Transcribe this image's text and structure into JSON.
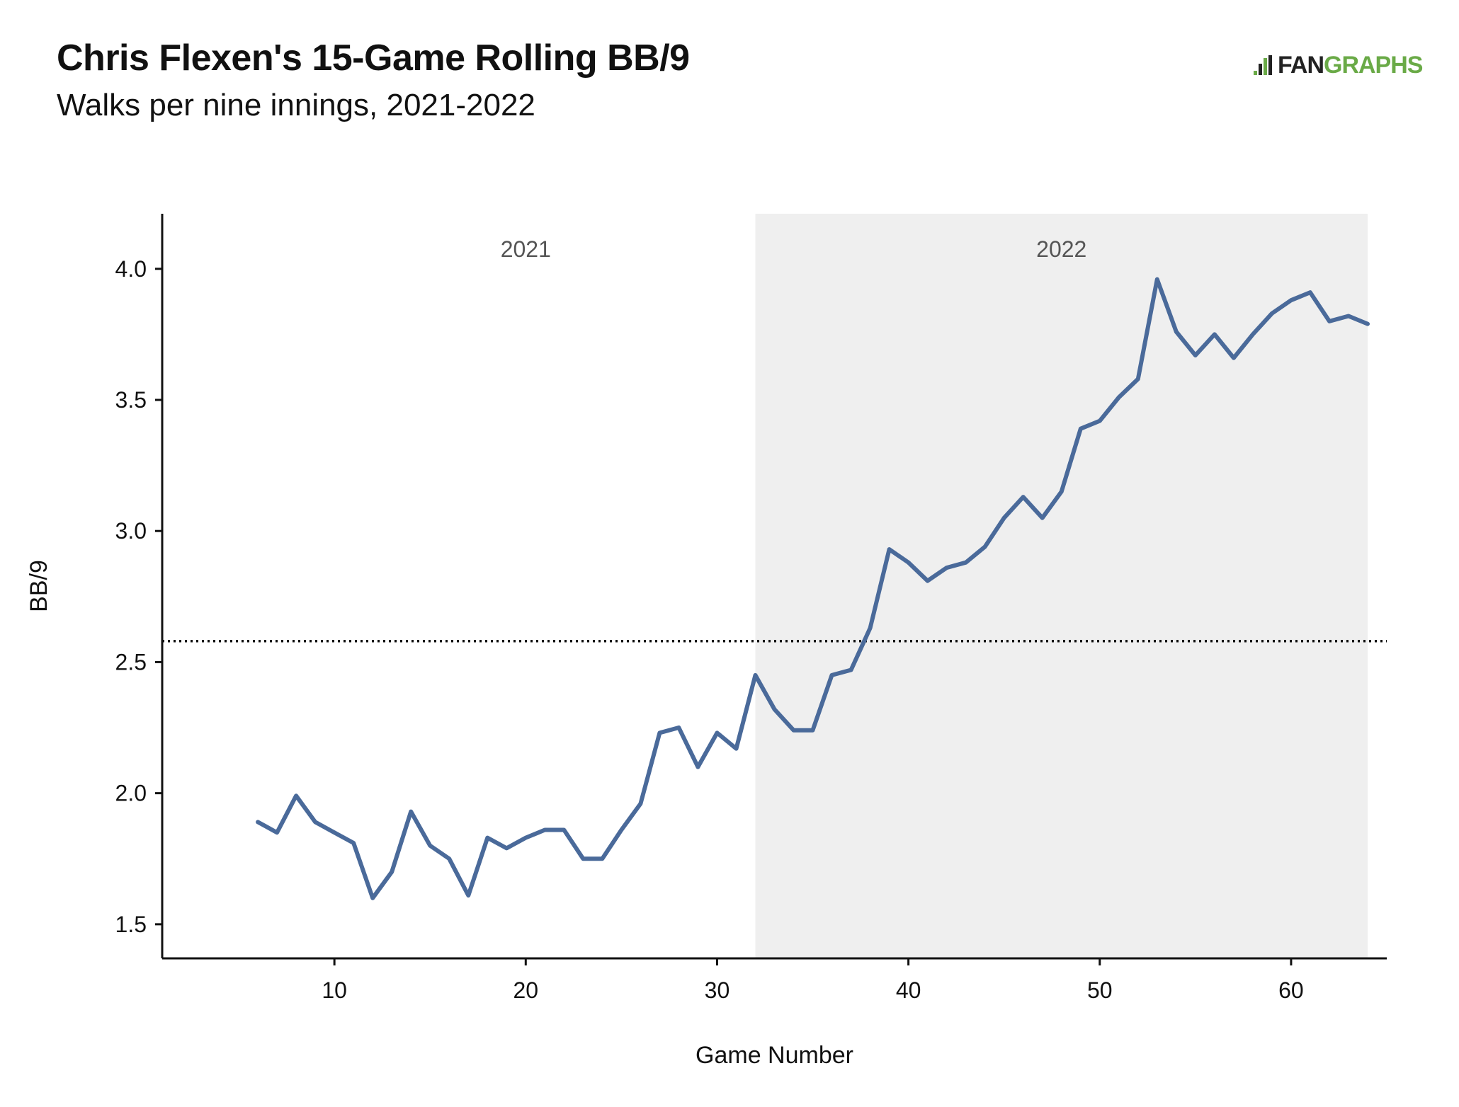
{
  "chart_data": {
    "type": "line",
    "title": "Chris Flexen's 15-Game Rolling BB/9",
    "subtitle": "Walks per nine innings, 2021-2022",
    "xlabel": "Game Number",
    "ylabel": "BB/9",
    "xlim": [
      1,
      65
    ],
    "ylim": [
      1.37,
      4.21
    ],
    "x_ticks": [
      10,
      20,
      30,
      40,
      50,
      60
    ],
    "y_ticks": [
      1.5,
      2.0,
      2.5,
      3.0,
      3.5,
      4.0
    ],
    "y_tick_labels": [
      "1.5",
      "2.0",
      "2.5",
      "3.0",
      "3.5",
      "4.0"
    ],
    "grid": false,
    "series": [
      {
        "color": "#4a6a9a",
        "x": [
          6,
          7,
          8,
          9,
          10,
          11,
          12,
          13,
          14,
          15,
          16,
          17,
          18,
          19,
          20,
          21,
          22,
          23,
          24,
          25,
          26,
          27,
          28,
          29,
          30,
          31,
          32,
          33,
          34,
          35,
          36,
          37,
          38,
          39,
          40,
          41,
          42,
          43,
          44,
          45,
          46,
          47,
          48,
          49,
          50,
          51,
          52,
          53,
          54,
          55,
          56,
          57,
          58,
          59,
          60,
          61,
          62,
          63,
          64
        ],
        "values": [
          1.89,
          1.85,
          1.99,
          1.89,
          1.85,
          1.81,
          1.6,
          1.7,
          1.93,
          1.8,
          1.75,
          1.61,
          1.83,
          1.79,
          1.83,
          1.86,
          1.86,
          1.75,
          1.75,
          1.86,
          1.96,
          2.23,
          2.25,
          2.1,
          2.23,
          2.17,
          2.45,
          2.32,
          2.24,
          2.24,
          2.45,
          2.47,
          2.63,
          2.93,
          2.88,
          2.81,
          2.86,
          2.88,
          2.94,
          3.05,
          3.13,
          3.05,
          3.15,
          3.39,
          3.42,
          3.51,
          3.58,
          3.96,
          3.76,
          3.67,
          3.75,
          3.66,
          3.75,
          3.83,
          3.88,
          3.91,
          3.8,
          3.82,
          3.79
        ]
      }
    ],
    "reference_line": {
      "y": 2.58,
      "style": "dotted"
    },
    "shaded_region": {
      "x_start": 32,
      "x_end": 64,
      "color": "#efefef"
    },
    "season_labels": [
      {
        "label": "2021",
        "x": 20
      },
      {
        "label": "2022",
        "x": 48
      }
    ]
  },
  "branding": {
    "logo_fan": "FAN",
    "logo_graphs": "GRAPHS",
    "accent": "#6aaa47"
  }
}
